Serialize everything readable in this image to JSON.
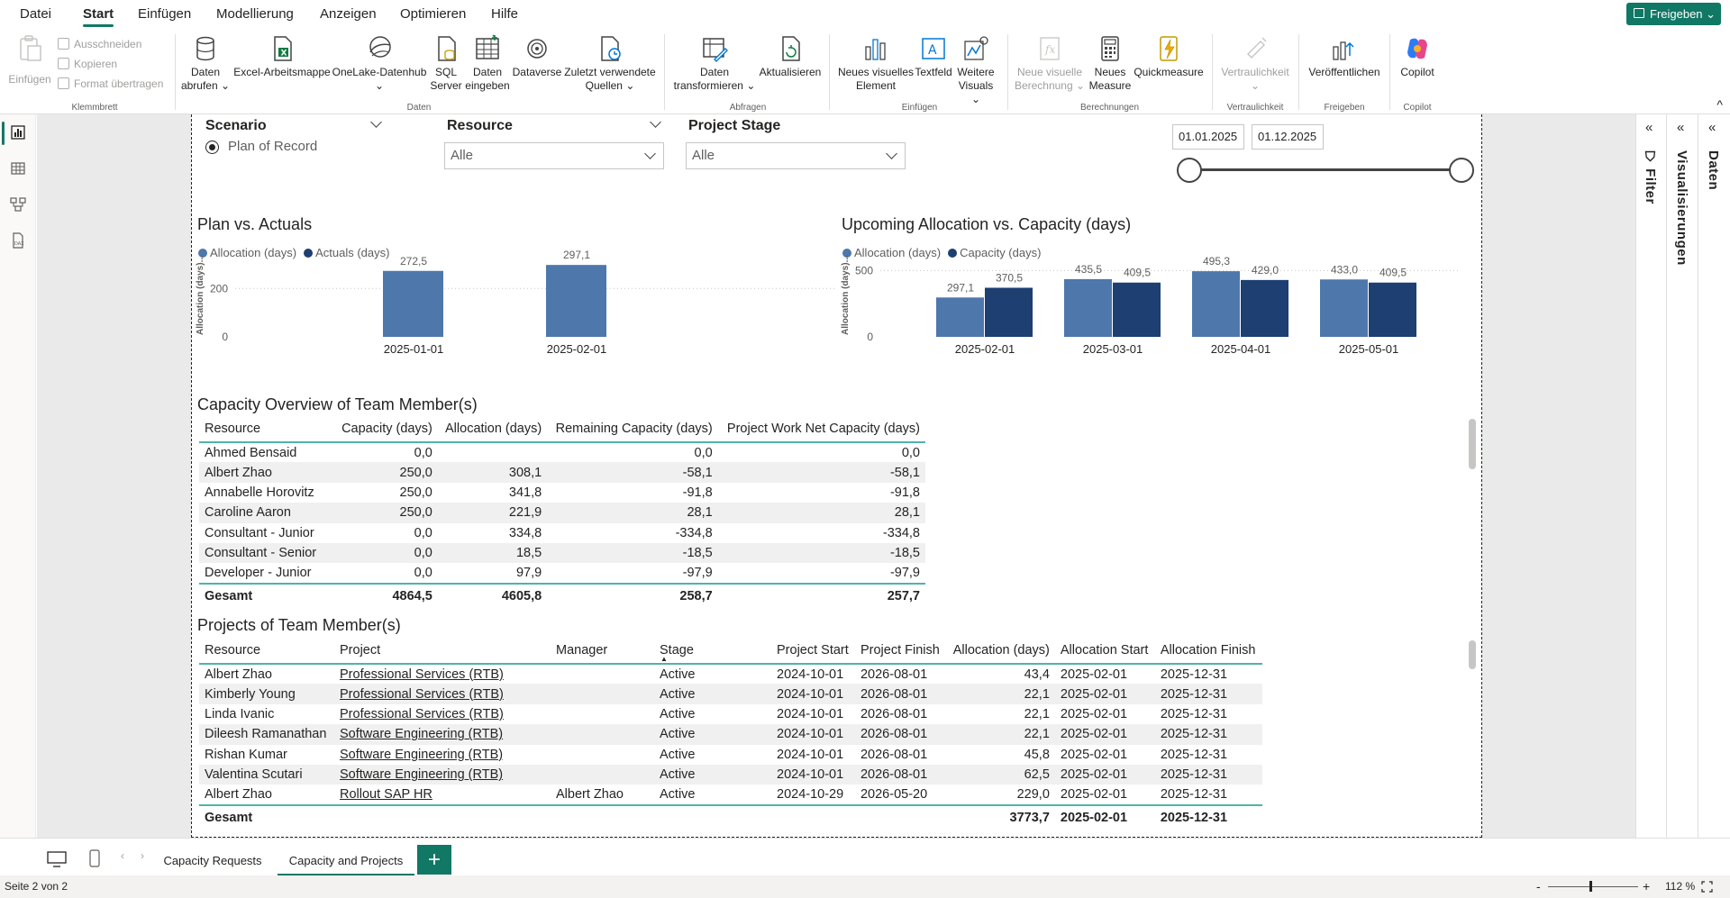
{
  "menu": {
    "items": [
      "Datei",
      "Start",
      "Einfügen",
      "Modellierung",
      "Anzeigen",
      "Optimieren",
      "Hilfe"
    ],
    "active": "Start",
    "share": "Freigeben"
  },
  "ribbon": {
    "clipboard": {
      "paste": "Einfügen",
      "cut": "Ausschneiden",
      "copy": "Kopieren",
      "format_painter": "Format übertragen",
      "group": "Klemmbrett"
    },
    "data": {
      "get_data_1": "Daten",
      "get_data_2": "abrufen",
      "excel": "Excel-Arbeitsmappe",
      "onelake": "OneLake-Datenhub",
      "sql_1": "SQL",
      "sql_2": "Server",
      "enter_1": "Daten",
      "enter_2": "eingeben",
      "dataverse": "Dataverse",
      "recent_1": "Zuletzt verwendete",
      "recent_2": "Quellen",
      "group": "Daten"
    },
    "queries": {
      "transform_1": "Daten",
      "transform_2": "transformieren",
      "refresh": "Aktualisieren",
      "group": "Abfragen"
    },
    "insert": {
      "new_visual_1": "Neues visuelles",
      "new_visual_2": "Element",
      "textbox": "Textfeld",
      "more_1": "Weitere",
      "more_2": "Visuals",
      "group": "Einfügen"
    },
    "calc": {
      "new_calc_1": "Neue visuelle",
      "new_calc_2": "Berechnung",
      "new_measure_1": "Neues",
      "new_measure_2": "Measure",
      "quick": "Quickmeasure",
      "group": "Berechnungen"
    },
    "sensitivity": {
      "label": "Vertraulichkeit",
      "group": "Vertraulichkeit"
    },
    "share": {
      "publish": "Veröffentlichen",
      "group": "Freigeben"
    },
    "copilot": {
      "label": "Copilot",
      "group": "Copilot"
    }
  },
  "slicers": {
    "scenario": {
      "title": "Scenario",
      "option": "Plan of Record"
    },
    "resource": {
      "title": "Resource",
      "value": "Alle"
    },
    "stage": {
      "title": "Project Stage",
      "value": "Alle"
    },
    "date": {
      "start": "01.01.2025",
      "end": "01.12.2025"
    }
  },
  "panes": {
    "filter": "Filter",
    "visualizations": "Visualisierungen",
    "data": "Daten"
  },
  "colors": {
    "accent": "#117865",
    "series_light": "#4E77AC",
    "series_dark": "#1D3F72"
  },
  "chart_data": [
    {
      "type": "bar",
      "title": "Plan vs. Actuals",
      "ylabel": "Allocation (days)...",
      "categories": [
        "2025-01-01",
        "2025-02-01"
      ],
      "series": [
        {
          "name": "Allocation (days)",
          "values": [
            272.5,
            297.1
          ],
          "labels": [
            "272,5",
            "297,1"
          ]
        }
      ],
      "legend": [
        "Allocation (days)",
        "Actuals (days)"
      ],
      "yticks": [
        0,
        200
      ],
      "ytick_labels": [
        "0",
        "200"
      ],
      "ylim": [
        0,
        320
      ]
    },
    {
      "type": "bar",
      "title": "Upcoming Allocation vs. Capacity (days)",
      "ylabel": "Allocation (days)...",
      "categories": [
        "2025-02-01",
        "2025-03-01",
        "2025-04-01",
        "2025-05-01"
      ],
      "series": [
        {
          "name": "Allocation (days)",
          "values": [
            297.1,
            435.5,
            495.3,
            433.0
          ],
          "labels": [
            "297,1",
            "435,5",
            "495,3",
            "433,0"
          ]
        },
        {
          "name": "Capacity (days)",
          "values": [
            370.5,
            409.5,
            429.0,
            409.5
          ],
          "labels": [
            "370,5",
            "409,5",
            "429,0",
            "409,5"
          ]
        }
      ],
      "yticks": [
        0,
        500
      ],
      "ytick_labels": [
        "0",
        "500"
      ],
      "ylim": [
        0,
        530
      ]
    }
  ],
  "capacity": {
    "title": "Capacity Overview of Team Member(s)",
    "headers": [
      "Resource",
      "Capacity (days)",
      "Allocation (days)",
      "Remaining Capacity (days)",
      "Project Work Net Capacity (days)"
    ],
    "rows": [
      [
        "Ahmed Bensaid",
        "0,0",
        "",
        "0,0",
        "0,0"
      ],
      [
        "Albert Zhao",
        "250,0",
        "308,1",
        "-58,1",
        "-58,1"
      ],
      [
        "Annabelle Horovitz",
        "250,0",
        "341,8",
        "-91,8",
        "-91,8"
      ],
      [
        "Caroline Aaron",
        "250,0",
        "221,9",
        "28,1",
        "28,1"
      ],
      [
        "Consultant - Junior",
        "0,0",
        "334,8",
        "-334,8",
        "-334,8"
      ],
      [
        "Consultant - Senior",
        "0,0",
        "18,5",
        "-18,5",
        "-18,5"
      ],
      [
        "Developer - Junior",
        "0,0",
        "97,9",
        "-97,9",
        "-97,9"
      ]
    ],
    "total": [
      "Gesamt",
      "4864,5",
      "4605,8",
      "258,7",
      "257,7"
    ]
  },
  "projects": {
    "title": "Projects of Team Member(s)",
    "headers": [
      "Resource",
      "Project",
      "Manager",
      "Stage",
      "Project Start",
      "Project Finish",
      "Allocation (days)",
      "Allocation Start",
      "Allocation Finish"
    ],
    "rows": [
      [
        "Albert Zhao",
        "Professional Services (RTB)",
        "",
        "Active",
        "2024-10-01",
        "2026-08-01",
        "43,4",
        "2025-02-01",
        "2025-12-31"
      ],
      [
        "Kimberly Young",
        "Professional Services (RTB)",
        "",
        "Active",
        "2024-10-01",
        "2026-08-01",
        "22,1",
        "2025-02-01",
        "2025-12-31"
      ],
      [
        "Linda Ivanic",
        "Professional Services (RTB)",
        "",
        "Active",
        "2024-10-01",
        "2026-08-01",
        "22,1",
        "2025-02-01",
        "2025-12-31"
      ],
      [
        "Dileesh Ramanathan",
        "Software Engineering (RTB)",
        "",
        "Active",
        "2024-10-01",
        "2026-08-01",
        "22,1",
        "2025-02-01",
        "2025-12-31"
      ],
      [
        "Rishan Kumar",
        "Software Engineering (RTB)",
        "",
        "Active",
        "2024-10-01",
        "2026-08-01",
        "45,8",
        "2025-02-01",
        "2025-12-31"
      ],
      [
        "Valentina Scutari",
        "Software Engineering (RTB)",
        "",
        "Active",
        "2024-10-01",
        "2026-08-01",
        "62,5",
        "2025-02-01",
        "2025-12-31"
      ],
      [
        "Albert Zhao",
        "Rollout SAP HR",
        "Albert Zhao",
        "Active",
        "2024-10-29",
        "2026-05-20",
        "229,0",
        "2025-02-01",
        "2025-12-31"
      ]
    ],
    "total": [
      "Gesamt",
      "",
      "",
      "",
      "",
      "",
      "3773,7",
      "2025-02-01",
      "2025-12-31"
    ]
  },
  "tabs": {
    "items": [
      "Capacity Requests",
      "Capacity and Projects"
    ],
    "active": "Capacity and Projects",
    "add": "+"
  },
  "status": {
    "page": "Seite 2 von 2",
    "zoom": "112 %",
    "minus": "-",
    "plus": "+"
  }
}
